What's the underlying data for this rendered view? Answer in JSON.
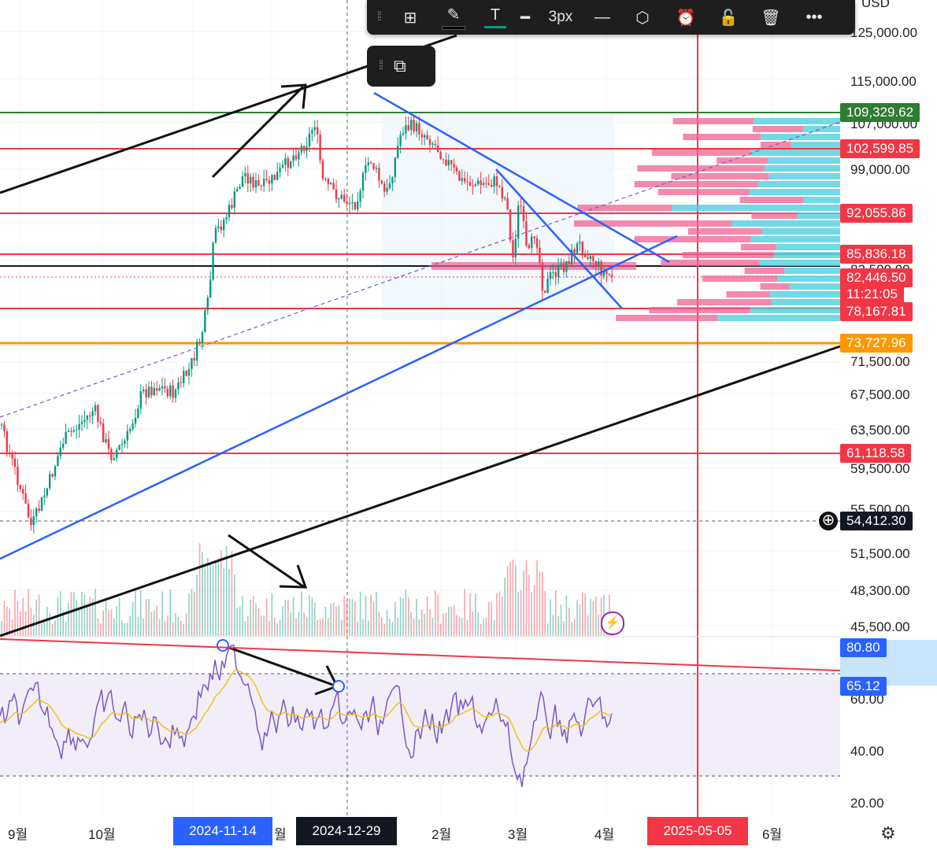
{
  "toolbar": {
    "line_width_label": "3px",
    "icons": [
      "drag-handle-icon",
      "object-tree-icon",
      "pencil-icon",
      "text-icon",
      "line-width-icon",
      "line-style-icon",
      "hexagon-settings-icon",
      "alert-clock-icon",
      "unlock-icon",
      "trash-icon",
      "more-icon"
    ]
  },
  "sub_toolbar": {
    "icons": [
      "drag-handle-icon",
      "visual-order-icon"
    ]
  },
  "top_partial_label": "USD",
  "price_axis": {
    "labels": [
      "125,000.00",
      "115,000.00",
      "107,000.00",
      "99,000.00",
      "82,500.00",
      "71,500.00",
      "67,500.00",
      "63,500.00",
      "59,500.00",
      "55,500.00",
      "51,500.00",
      "48,300.00",
      "45,500.00",
      "60.00",
      "40.00",
      "20.00"
    ],
    "tags": [
      {
        "value": "109,329.62",
        "color": "#2e7d32"
      },
      {
        "value": "102,599.85",
        "color": "#f23645"
      },
      {
        "value": "92,055.86",
        "color": "#f23645"
      },
      {
        "value": "85,836.18",
        "color": "#f23645"
      },
      {
        "value": "82,446.50",
        "color": "#f23645"
      },
      {
        "value": "11:21:05",
        "color": "#f23645"
      },
      {
        "value": "78,167.81",
        "color": "#f23645"
      },
      {
        "value": "73,727.96",
        "color": "#ff9800"
      },
      {
        "value": "61,118.58",
        "color": "#f23645"
      },
      {
        "value": "54,412.30",
        "color": "#131722"
      },
      {
        "value": "80.80",
        "color": "#2962ff"
      },
      {
        "value": "65.12",
        "color": "#2962ff"
      }
    ]
  },
  "time_axis": {
    "labels": [
      "9월",
      "10월",
      "월",
      "2월",
      "3월",
      "4월",
      "6월"
    ],
    "tags": [
      {
        "value": "2024-11-14",
        "color": "#2962ff"
      },
      {
        "value": "2024-12-29",
        "color": "#131722"
      },
      {
        "value": "2025-05-05",
        "color": "#f23645"
      }
    ]
  },
  "colors": {
    "up": "#089981",
    "down": "#f23645",
    "rsi": "#7e57c2",
    "rsi_ma": "#f0c419",
    "trend": "#2962ff",
    "hline": "#f23645",
    "support": "#ff9800",
    "resistance": "#2e7d32"
  },
  "chart_data": {
    "type": "candlestick",
    "symbol_quote": "USD",
    "price_levels": [
      109329.62,
      102599.85,
      92055.86,
      85836.18,
      82446.5,
      78167.81,
      73727.96,
      61118.58
    ],
    "crosshair_price": 54412.3,
    "countdown": "11:21:05",
    "rsi": {
      "value_a": 80.8,
      "value_b": 65.12,
      "upper_band": 70,
      "lower_band": 30
    },
    "marked_dates": [
      "2024-11-14",
      "2024-12-29",
      "2025-05-05"
    ]
  }
}
